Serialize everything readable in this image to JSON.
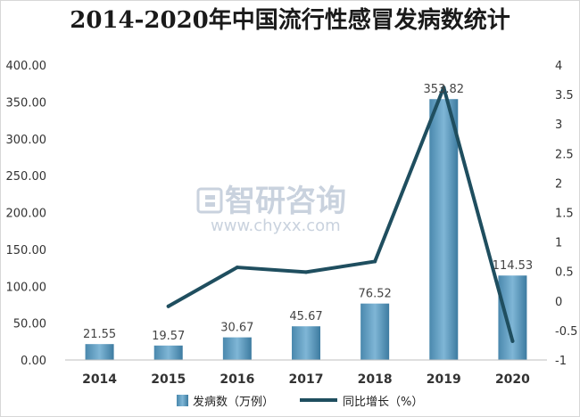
{
  "chart_data": {
    "type": "bar+line",
    "title": "2014-2020年中国流行性感冒发病数统计",
    "categories": [
      "2014",
      "2015",
      "2016",
      "2017",
      "2018",
      "2019",
      "2020"
    ],
    "series": [
      {
        "name": "发病数（万例）",
        "type": "bar",
        "axis": "left",
        "values": [
          21.55,
          19.57,
          30.67,
          45.67,
          76.52,
          353.82,
          114.53
        ],
        "labels": [
          "21.55",
          "19.57",
          "30.67",
          "45.67",
          "76.52",
          "353.82",
          "114.53"
        ],
        "color": "#5b9fc3"
      },
      {
        "name": "同比增长（%）",
        "type": "line",
        "axis": "right",
        "values": [
          null,
          -0.09,
          0.57,
          0.49,
          0.67,
          3.62,
          -0.68
        ],
        "color": "#1f4e5f"
      }
    ],
    "y_left": {
      "range": [
        0,
        400
      ],
      "ticks": [
        "0.00",
        "50.00",
        "100.00",
        "150.00",
        "200.00",
        "250.00",
        "300.00",
        "350.00",
        "400.00"
      ]
    },
    "y_right": {
      "range": [
        -1,
        4
      ],
      "ticks": [
        "-1",
        "-0.5",
        "0",
        "0.5",
        "1",
        "1.5",
        "2",
        "2.5",
        "3",
        "3.5",
        "4"
      ]
    },
    "legend_position": "bottom",
    "grid": false
  },
  "watermark": {
    "brand": "智研咨询",
    "url": "www.chyxx.com"
  }
}
